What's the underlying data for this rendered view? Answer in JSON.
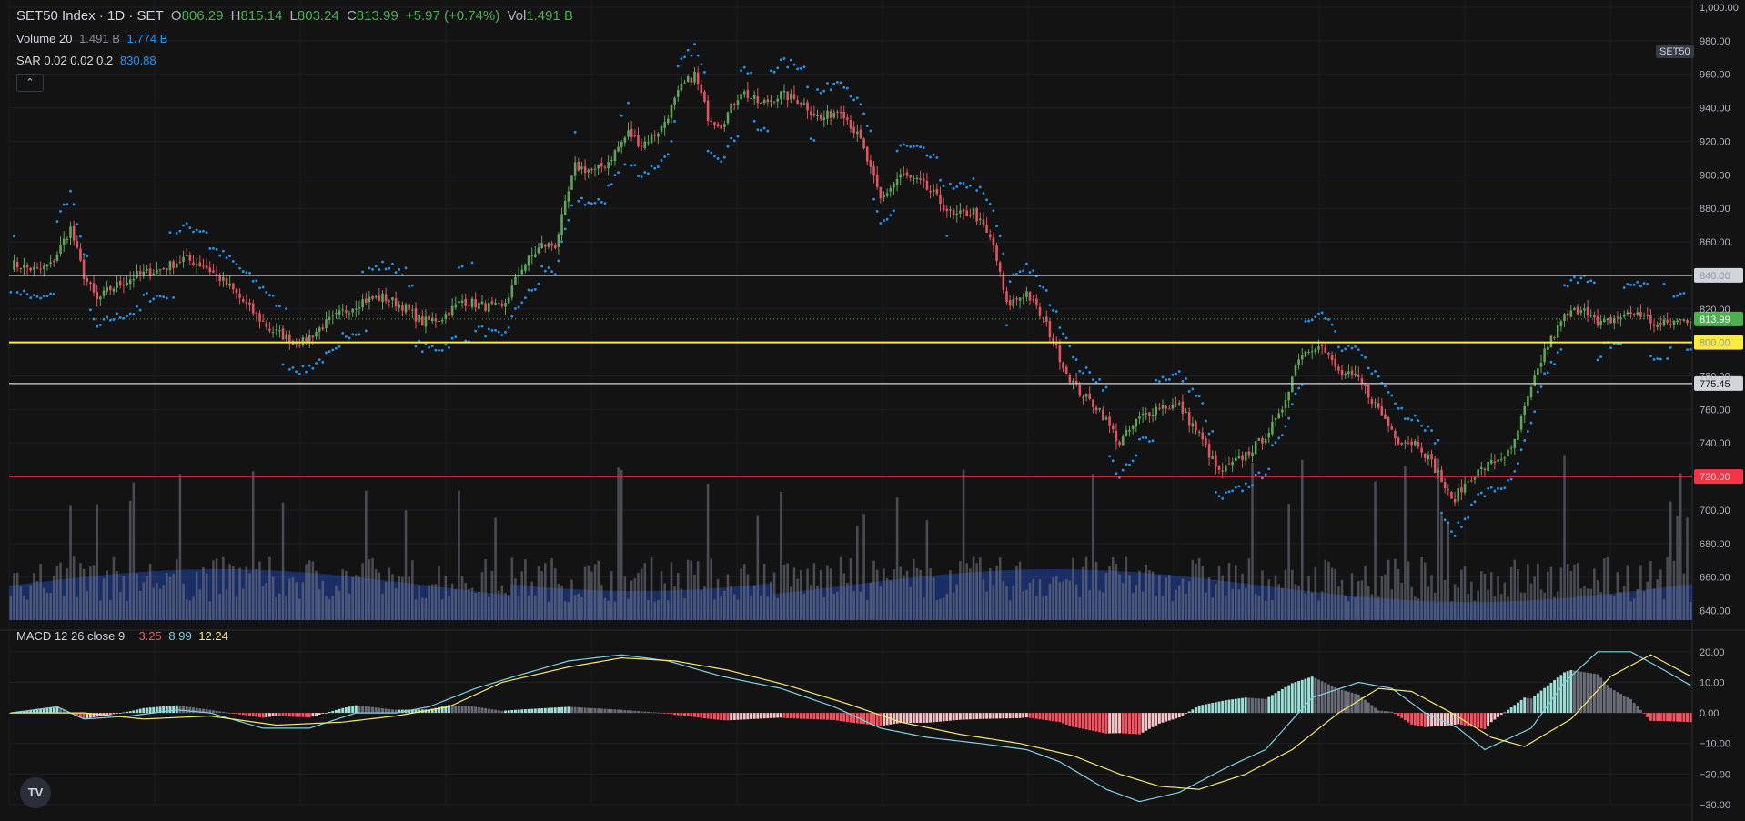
{
  "header": {
    "title": "SET50 Index · 1D · SET",
    "open_label": "O",
    "open": "806.29",
    "high_label": "H",
    "high": "815.14",
    "low_label": "L",
    "low": "803.24",
    "close_label": "C",
    "close": "813.99",
    "change": "+5.97 (+0.74%)",
    "vol_label": "Vol",
    "vol": "1.491 B"
  },
  "indicators": {
    "volume_name": "Volume 20",
    "volume_value1": "1.491 B",
    "volume_value2": "1.774 B",
    "sar_name": "SAR 0.02 0.02 0.2",
    "sar_value": "830.88",
    "macd_name": "MACD 12 26 close 9",
    "macd_hist": "−3.25",
    "macd_line": "8.99",
    "macd_signal": "12.24"
  },
  "symbol_tag": "SET50",
  "collapse_icon": "chevron-up-icon",
  "logo_text": "TV",
  "chart_data": {
    "type": "candlestick",
    "price_axis": {
      "ylim": [
        630,
        1000
      ],
      "ticks": [
        "1,000.00",
        "980.00",
        "960.00",
        "940.00",
        "920.00",
        "900.00",
        "880.00",
        "860.00",
        "840.00",
        "820.00",
        "800.00",
        "780.00",
        "760.00",
        "740.00",
        "720.00",
        "700.00",
        "680.00",
        "660.00",
        "640.00"
      ]
    },
    "macd_axis": {
      "ylim": [
        -30,
        25
      ],
      "ticks": [
        "20.00",
        "10.00",
        "0.00",
        "−10.00",
        "−20.00",
        "−30.00"
      ]
    },
    "horizontal_lines": [
      {
        "value": 840,
        "label": "840.00",
        "color": "#d1d4dc"
      },
      {
        "value": 800,
        "label": "800.00",
        "color": "#ffeb3b"
      },
      {
        "value": 775.45,
        "label": "775.45",
        "color": "#d1d4dc"
      },
      {
        "value": 720,
        "label": "720.00",
        "color": "#f23645"
      }
    ],
    "last_price": {
      "value": 813.99,
      "label": "813.99",
      "color": "#4caf50"
    },
    "close_anchors": [
      [
        0,
        847
      ],
      [
        8,
        843
      ],
      [
        12,
        846
      ],
      [
        18,
        868
      ],
      [
        22,
        840
      ],
      [
        26,
        825
      ],
      [
        30,
        832
      ],
      [
        38,
        840
      ],
      [
        46,
        844
      ],
      [
        52,
        850
      ],
      [
        58,
        846
      ],
      [
        62,
        840
      ],
      [
        66,
        833
      ],
      [
        72,
        820
      ],
      [
        78,
        808
      ],
      [
        84,
        802
      ],
      [
        88,
        800
      ],
      [
        94,
        810
      ],
      [
        100,
        818
      ],
      [
        106,
        825
      ],
      [
        112,
        827
      ],
      [
        118,
        822
      ],
      [
        124,
        812
      ],
      [
        130,
        815
      ],
      [
        136,
        825
      ],
      [
        142,
        822
      ],
      [
        148,
        820
      ],
      [
        154,
        845
      ],
      [
        160,
        858
      ],
      [
        164,
        858
      ],
      [
        170,
        905
      ],
      [
        176,
        902
      ],
      [
        180,
        908
      ],
      [
        186,
        925
      ],
      [
        190,
        918
      ],
      [
        196,
        928
      ],
      [
        202,
        952
      ],
      [
        206,
        960
      ],
      [
        210,
        935
      ],
      [
        214,
        930
      ],
      [
        220,
        950
      ],
      [
        226,
        942
      ],
      [
        232,
        948
      ],
      [
        238,
        944
      ],
      [
        244,
        933
      ],
      [
        250,
        940
      ],
      [
        256,
        920
      ],
      [
        262,
        885
      ],
      [
        268,
        900
      ],
      [
        274,
        895
      ],
      [
        278,
        888
      ],
      [
        284,
        875
      ],
      [
        290,
        878
      ],
      [
        296,
        858
      ],
      [
        300,
        822
      ],
      [
        306,
        830
      ],
      [
        312,
        810
      ],
      [
        318,
        782
      ],
      [
        322,
        770
      ],
      [
        328,
        760
      ],
      [
        334,
        740
      ],
      [
        340,
        755
      ],
      [
        346,
        762
      ],
      [
        352,
        762
      ],
      [
        358,
        745
      ],
      [
        364,
        722
      ],
      [
        370,
        730
      ],
      [
        376,
        740
      ],
      [
        382,
        755
      ],
      [
        388,
        792
      ],
      [
        394,
        800
      ],
      [
        400,
        782
      ],
      [
        406,
        778
      ],
      [
        412,
        760
      ],
      [
        418,
        742
      ],
      [
        424,
        740
      ],
      [
        430,
        722
      ],
      [
        434,
        705
      ],
      [
        440,
        720
      ],
      [
        446,
        728
      ],
      [
        452,
        735
      ],
      [
        456,
        760
      ],
      [
        462,
        795
      ],
      [
        468,
        815
      ],
      [
        474,
        822
      ],
      [
        478,
        810
      ],
      [
        484,
        815
      ],
      [
        490,
        818
      ],
      [
        496,
        810
      ],
      [
        500,
        812
      ],
      [
        506,
        814
      ]
    ],
    "macd_anchors": [
      [
        0,
        0
      ],
      [
        14,
        2
      ],
      [
        22,
        -2
      ],
      [
        36,
        -1
      ],
      [
        50,
        1
      ],
      [
        60,
        0
      ],
      [
        76,
        -5
      ],
      [
        90,
        -5
      ],
      [
        104,
        0
      ],
      [
        116,
        0
      ],
      [
        126,
        2
      ],
      [
        140,
        8
      ],
      [
        152,
        12
      ],
      [
        168,
        17
      ],
      [
        184,
        19
      ],
      [
        198,
        17
      ],
      [
        214,
        12
      ],
      [
        232,
        8
      ],
      [
        248,
        2
      ],
      [
        262,
        -5
      ],
      [
        276,
        -8
      ],
      [
        292,
        -10
      ],
      [
        306,
        -12
      ],
      [
        316,
        -16
      ],
      [
        330,
        -25
      ],
      [
        340,
        -29
      ],
      [
        352,
        -26
      ],
      [
        366,
        -18
      ],
      [
        378,
        -12
      ],
      [
        392,
        5
      ],
      [
        406,
        10
      ],
      [
        416,
        8
      ],
      [
        426,
        0
      ],
      [
        436,
        -5
      ],
      [
        444,
        -12
      ],
      [
        458,
        -5
      ],
      [
        468,
        10
      ],
      [
        478,
        20
      ],
      [
        488,
        20
      ],
      [
        498,
        14
      ],
      [
        506,
        9
      ]
    ],
    "signal_anchors": [
      [
        0,
        0
      ],
      [
        22,
        0
      ],
      [
        40,
        -2
      ],
      [
        60,
        -1
      ],
      [
        80,
        -4
      ],
      [
        100,
        -3
      ],
      [
        116,
        -1
      ],
      [
        132,
        2
      ],
      [
        148,
        10
      ],
      [
        168,
        15
      ],
      [
        184,
        18
      ],
      [
        200,
        17
      ],
      [
        216,
        14
      ],
      [
        234,
        9
      ],
      [
        252,
        3
      ],
      [
        268,
        -3
      ],
      [
        286,
        -7
      ],
      [
        304,
        -10
      ],
      [
        320,
        -14
      ],
      [
        334,
        -20
      ],
      [
        346,
        -24
      ],
      [
        358,
        -25
      ],
      [
        372,
        -20
      ],
      [
        386,
        -12
      ],
      [
        400,
        0
      ],
      [
        412,
        8
      ],
      [
        422,
        7
      ],
      [
        434,
        0
      ],
      [
        446,
        -8
      ],
      [
        456,
        -11
      ],
      [
        470,
        -2
      ],
      [
        482,
        12
      ],
      [
        494,
        19
      ],
      [
        506,
        12
      ]
    ]
  }
}
